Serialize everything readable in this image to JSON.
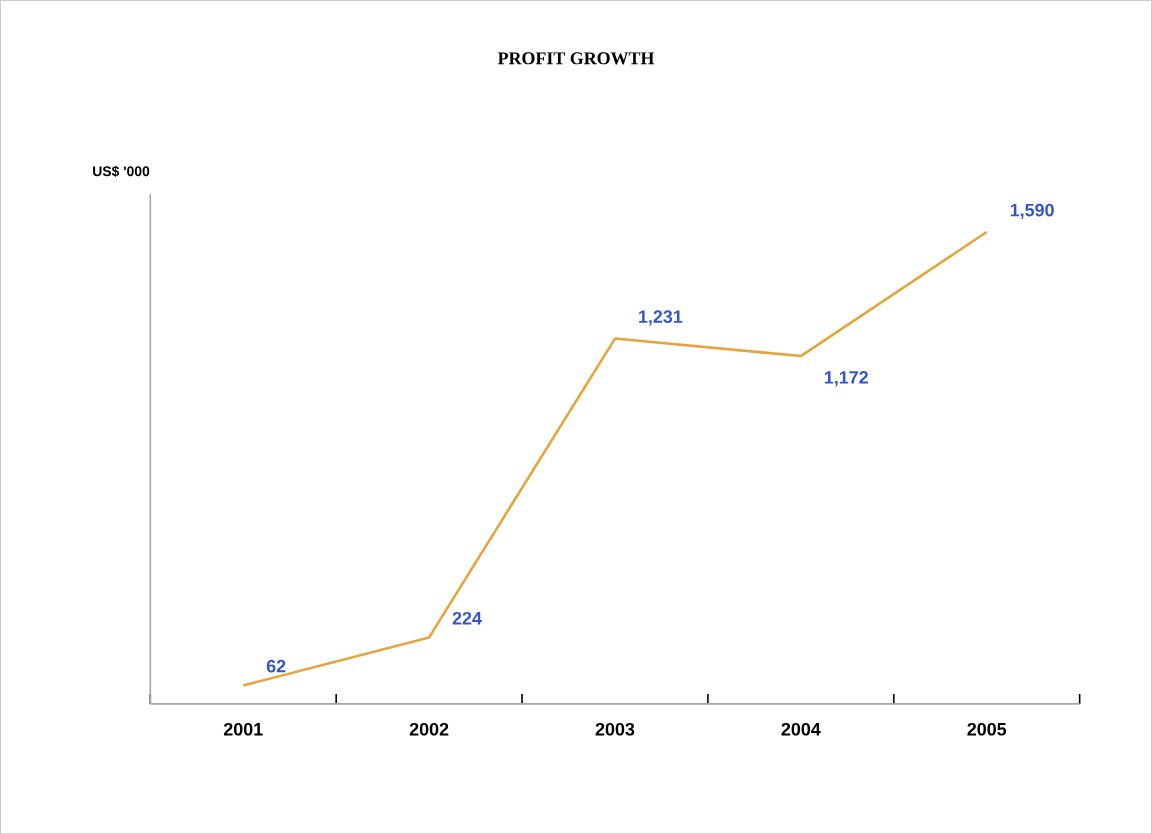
{
  "chart_data": {
    "type": "line",
    "title": "PROFIT GROWTH",
    "ylabel": "US$ '000",
    "categories": [
      "2001",
      "2002",
      "2003",
      "2004",
      "2005"
    ],
    "series": [
      {
        "color": "#e8a33c",
        "values": [
          62,
          224,
          1231,
          1172,
          1590
        ],
        "value_labels": [
          "62",
          "224",
          "1,231",
          "1,172",
          "1,590"
        ]
      }
    ],
    "marker": "none",
    "line_style": "solid"
  }
}
